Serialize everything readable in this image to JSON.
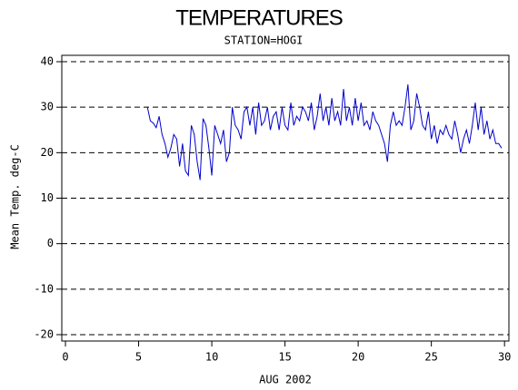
{
  "chart_data": {
    "type": "line",
    "title": "TEMPERATURES",
    "subtitle": "STATION=HOGI",
    "x_label": "AUG 2002",
    "y_label": "Mean Temp. deg-C",
    "xlim": [
      -0.25,
      30.3
    ],
    "ylim": [
      -21.4,
      41.4
    ],
    "xticks": [
      0,
      5,
      10,
      15,
      20,
      25,
      30
    ],
    "yticks": [
      -20,
      -10,
      0,
      10,
      20,
      30,
      40
    ],
    "grid": true,
    "series": [
      {
        "color": "#0000cc",
        "x": [
          5.6,
          5.8,
          6.0,
          6.2,
          6.4,
          6.6,
          6.8,
          7.0,
          7.2,
          7.4,
          7.6,
          7.8,
          8.0,
          8.2,
          8.4,
          8.6,
          8.8,
          9.0,
          9.2,
          9.4,
          9.6,
          9.8,
          10.0,
          10.2,
          10.4,
          10.6,
          10.8,
          11.0,
          11.2,
          11.4,
          11.6,
          11.8,
          12.0,
          12.2,
          12.4,
          12.6,
          12.8,
          13.0,
          13.2,
          13.4,
          13.6,
          13.8,
          14.0,
          14.2,
          14.4,
          14.6,
          14.8,
          15.0,
          15.2,
          15.4,
          15.6,
          15.8,
          16.0,
          16.2,
          16.4,
          16.6,
          16.8,
          17.0,
          17.2,
          17.4,
          17.6,
          17.8,
          18.0,
          18.2,
          18.4,
          18.6,
          18.8,
          19.0,
          19.2,
          19.4,
          19.6,
          19.8,
          20.0,
          20.2,
          20.4,
          20.6,
          20.8,
          21.0,
          21.2,
          21.4,
          21.6,
          21.8,
          22.0,
          22.2,
          22.4,
          22.6,
          22.8,
          23.0,
          23.2,
          23.4,
          23.6,
          23.8,
          24.0,
          24.2,
          24.4,
          24.6,
          24.8,
          25.0,
          25.2,
          25.4,
          25.6,
          25.8,
          26.0,
          26.2,
          26.4,
          26.6,
          26.8,
          27.0,
          27.2,
          27.4,
          27.6,
          27.8,
          28.0,
          28.2,
          28.4,
          28.6,
          28.8,
          29.0,
          29.2,
          29.4,
          29.6,
          29.8
        ],
        "values": [
          30,
          27,
          26.5,
          25.5,
          28,
          24,
          22,
          19,
          21,
          24,
          23,
          17,
          22,
          16,
          15,
          26,
          24,
          18,
          14,
          27.5,
          26,
          21,
          15,
          26,
          24,
          22,
          25,
          18,
          20,
          30,
          26,
          25,
          23,
          29,
          30,
          26,
          30,
          24,
          31,
          26,
          27,
          30,
          25,
          28,
          29,
          25,
          30,
          26,
          25,
          31,
          26,
          28,
          27,
          30,
          29,
          27,
          31,
          25,
          28,
          33,
          27,
          30,
          26,
          32,
          27,
          29,
          26,
          34,
          27,
          30,
          26,
          32,
          27,
          31,
          26,
          27,
          25,
          29,
          27,
          26,
          24,
          22,
          18,
          26,
          29,
          26,
          27,
          26,
          30,
          35,
          25,
          27,
          33,
          30,
          26,
          25,
          29,
          23,
          26,
          22,
          25,
          24,
          26,
          24,
          23,
          27,
          24,
          20,
          23,
          25,
          22,
          26,
          31,
          25,
          30,
          24,
          27,
          23,
          25,
          22,
          22,
          21
        ]
      }
    ]
  }
}
